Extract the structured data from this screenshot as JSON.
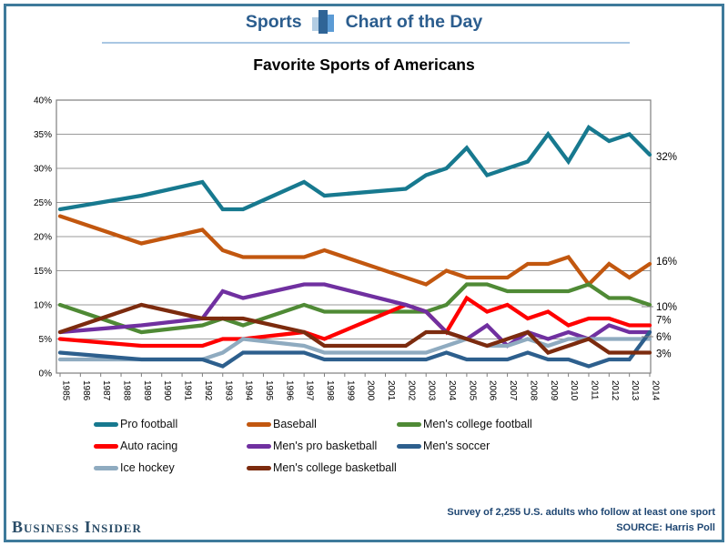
{
  "frame": {
    "border_color": "#3e7a9b"
  },
  "header": {
    "left_label": "Sports",
    "right_label": "Chart of the Day",
    "icon": "bar-chart-icon",
    "text_color": "#2b5d8e",
    "underline_color": "#a9c7e3"
  },
  "title": "Favorite Sports of Americans",
  "chart_data": {
    "type": "line",
    "title": "Favorite Sports of Americans",
    "x_axis": {
      "range": [
        1985,
        2014
      ],
      "tick_labels": [
        "1985",
        "1986",
        "1987",
        "1988",
        "1989",
        "1990",
        "1991",
        "1992",
        "1993",
        "1994",
        "1995",
        "1996",
        "1997",
        "1998",
        "1999",
        "2000",
        "2001",
        "2002",
        "2003",
        "2004",
        "2005",
        "2006",
        "2007",
        "2008",
        "2009",
        "2010",
        "2011",
        "2012",
        "2013",
        "2014"
      ]
    },
    "y_axis": {
      "range": [
        0,
        40
      ],
      "unit": "%",
      "grid": true,
      "tick_labels": [
        "0%",
        "5%",
        "10%",
        "15%",
        "20%",
        "25%",
        "30%",
        "35%",
        "40%"
      ]
    },
    "note": "Lines have vertices only at surveyed years; intermediate years are linearly interpolated.",
    "survey_years": [
      1985,
      1989,
      1992,
      1993,
      1994,
      1997,
      1998,
      2002,
      2003,
      2004,
      2005,
      2006,
      2007,
      2008,
      2009,
      2010,
      2011,
      2012,
      2013,
      2014
    ],
    "legend_position": "bottom",
    "series": [
      {
        "name": "Pro football",
        "color": "#17798f",
        "end_label": "32%",
        "leader": false,
        "values": [
          24,
          26,
          28,
          24,
          24,
          28,
          26,
          27,
          29,
          30,
          33,
          29,
          30,
          31,
          35,
          31,
          36,
          34,
          35,
          32
        ]
      },
      {
        "name": "Baseball",
        "color": "#c2570f",
        "end_label": "16%",
        "leader": false,
        "values": [
          23,
          19,
          21,
          18,
          17,
          17,
          18,
          14,
          13,
          15,
          14,
          14,
          14,
          16,
          16,
          17,
          13,
          16,
          14,
          16
        ]
      },
      {
        "name": "Men's college football",
        "color": "#4f8a35",
        "end_label": "10%",
        "leader": true,
        "values": [
          10,
          6,
          7,
          8,
          7,
          10,
          9,
          9,
          9,
          10,
          13,
          13,
          12,
          12,
          12,
          12,
          13,
          11,
          11,
          10
        ]
      },
      {
        "name": "Auto racing",
        "color": "#ff0000",
        "end_label": "7%",
        "leader": false,
        "values": [
          5,
          4,
          4,
          5,
          5,
          6,
          5,
          10,
          9,
          6,
          11,
          9,
          10,
          8,
          9,
          7,
          8,
          8,
          7,
          7
        ]
      },
      {
        "name": "Men's pro basketball",
        "color": "#7030a0",
        "end_label": "6%",
        "leader": true,
        "values": [
          6,
          7,
          8,
          12,
          11,
          13,
          13,
          10,
          9,
          6,
          5,
          7,
          4,
          6,
          5,
          6,
          5,
          7,
          6,
          6
        ]
      },
      {
        "name": "Ice hockey",
        "color": "#8fabc0",
        "end_label": null,
        "leader": false,
        "values": [
          2,
          2,
          2,
          3,
          5,
          4,
          3,
          3,
          3,
          4,
          5,
          4,
          4,
          5,
          4,
          5,
          5,
          5,
          5,
          5
        ]
      },
      {
        "name": "Men's soccer",
        "color": "#2d5f8d",
        "end_label": null,
        "leader": false,
        "values": [
          3,
          2,
          2,
          1,
          3,
          3,
          2,
          2,
          2,
          3,
          2,
          2,
          2,
          3,
          2,
          2,
          1,
          2,
          2,
          6
        ]
      },
      {
        "name": "Men's college basketball",
        "color": "#7c2b0e",
        "end_label": "3%",
        "leader": false,
        "values": [
          6,
          10,
          8,
          8,
          8,
          6,
          4,
          4,
          6,
          6,
          5,
          4,
          5,
          6,
          3,
          4,
          5,
          3,
          3,
          3
        ]
      }
    ]
  },
  "legend": {
    "items": [
      {
        "label": "Pro football",
        "color": "#17798f"
      },
      {
        "label": "Baseball",
        "color": "#c2570f"
      },
      {
        "label": "Men's college football",
        "color": "#4f8a35"
      },
      {
        "label": "Auto racing",
        "color": "#ff0000"
      },
      {
        "label": "Men's pro basketball",
        "color": "#7030a0"
      },
      {
        "label": "Men's soccer",
        "color": "#2d5f8d"
      },
      {
        "label": "Ice hockey",
        "color": "#8fabc0"
      },
      {
        "label": "Men's college basketball",
        "color": "#7c2b0e"
      }
    ]
  },
  "footer": {
    "brand": "Business Insider",
    "note_line1": "Survey of 2,255 U.S. adults who follow at least one sport",
    "note_line2": "SOURCE: Harris Poll"
  }
}
